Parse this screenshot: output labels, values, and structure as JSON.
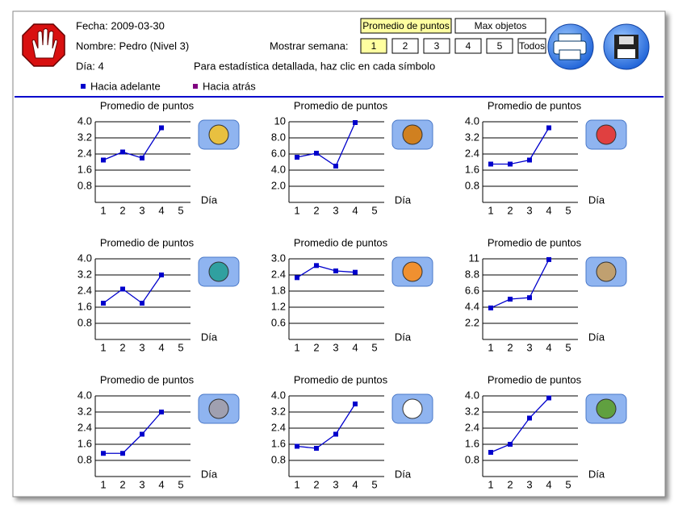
{
  "header": {
    "date": "Fecha: 2009-03-30",
    "name": "Nombre: Pedro (Nivel 3)",
    "day": "Día: 4",
    "week_label": "Mostrar semana:",
    "hint": "Para estadística detallada, haz clic en cada símbolo",
    "modes": [
      "Promedio de puntos",
      "Max objetos"
    ],
    "weeks": [
      "1",
      "2",
      "3",
      "4",
      "5",
      "Todos"
    ],
    "legend": [
      {
        "name": "Hacia adelante",
        "color": "#0000cc"
      },
      {
        "name": "Hacia atrás",
        "color": "#800080"
      }
    ]
  },
  "chart_data": [
    {
      "type": "line",
      "title": "Promedio de puntos",
      "x_label": "Día",
      "color": "#0000cc",
      "categories": [
        "1",
        "2",
        "3",
        "4",
        "5"
      ],
      "values": [
        2.1,
        2.5,
        2.2,
        3.7,
        null
      ],
      "ylim": [
        0,
        4
      ],
      "yticks": [
        0.8,
        1.6,
        2.4,
        3.2,
        {
          "value": 4,
          "label": "4.0"
        }
      ],
      "grid": true
    },
    {
      "type": "line",
      "title": "Promedio de puntos",
      "x_label": "Día",
      "color": "#0000cc",
      "categories": [
        "1",
        "2",
        "3",
        "4",
        "5"
      ],
      "values": [
        5.6,
        6.1,
        4.5,
        9.9,
        null
      ],
      "ylim": [
        0,
        10
      ],
      "yticks": [
        {
          "value": 2,
          "label": "2.0"
        },
        {
          "value": 4,
          "label": "4.0"
        },
        {
          "value": 6,
          "label": "6.0"
        },
        {
          "value": 8,
          "label": "8.0"
        },
        10
      ],
      "grid": true
    },
    {
      "type": "line",
      "title": "Promedio de puntos",
      "x_label": "Día",
      "color": "#0000cc",
      "categories": [
        "1",
        "2",
        "3",
        "4",
        "5"
      ],
      "values": [
        1.9,
        1.9,
        2.1,
        3.7,
        null
      ],
      "ylim": [
        0,
        4
      ],
      "yticks": [
        0.8,
        1.6,
        2.4,
        3.2,
        {
          "value": 4,
          "label": "4.0"
        }
      ],
      "grid": true
    },
    {
      "type": "line",
      "title": "Promedio de puntos",
      "x_label": "Día",
      "color": "#0000cc",
      "categories": [
        "1",
        "2",
        "3",
        "4",
        "5"
      ],
      "values": [
        1.8,
        2.5,
        1.8,
        3.2,
        null
      ],
      "ylim": [
        0,
        4
      ],
      "yticks": [
        0.8,
        1.6,
        2.4,
        3.2,
        {
          "value": 4,
          "label": "4.0"
        }
      ],
      "grid": true
    },
    {
      "type": "line",
      "title": "Promedio de puntos",
      "x_label": "Día",
      "color": "#0000cc",
      "categories": [
        "1",
        "2",
        "3",
        "4",
        "5"
      ],
      "values": [
        2.3,
        2.75,
        2.55,
        2.5,
        null
      ],
      "ylim": [
        0,
        3
      ],
      "yticks": [
        0.6,
        1.2,
        1.8,
        2.4,
        {
          "value": 3,
          "label": "3.0"
        }
      ],
      "grid": true
    },
    {
      "type": "line",
      "title": "Promedio de puntos",
      "x_label": "Día",
      "color": "#0000cc",
      "categories": [
        "1",
        "2",
        "3",
        "4",
        "5"
      ],
      "values": [
        4.3,
        5.5,
        5.7,
        10.9,
        null
      ],
      "ylim": [
        0,
        11
      ],
      "yticks": [
        2.2,
        4.4,
        6.6,
        8.8,
        11
      ],
      "grid": true
    },
    {
      "type": "line",
      "title": "Promedio de puntos",
      "x_label": "Día",
      "color": "#0000cc",
      "categories": [
        "1",
        "2",
        "3",
        "4",
        "5"
      ],
      "values": [
        1.15,
        1.15,
        2.1,
        3.2,
        null
      ],
      "ylim": [
        0,
        4
      ],
      "yticks": [
        0.8,
        1.6,
        2.4,
        3.2,
        {
          "value": 4,
          "label": "4.0"
        }
      ],
      "grid": true
    },
    {
      "type": "line",
      "title": "Promedio de puntos",
      "x_label": "Día",
      "color": "#0000cc",
      "categories": [
        "1",
        "2",
        "3",
        "4",
        "5"
      ],
      "values": [
        1.5,
        1.4,
        2.1,
        3.6,
        null
      ],
      "ylim": [
        0,
        4
      ],
      "yticks": [
        0.8,
        1.6,
        2.4,
        3.2,
        {
          "value": 4,
          "label": "4.0"
        }
      ],
      "grid": true
    },
    {
      "type": "line",
      "title": "Promedio de puntos",
      "x_label": "Día",
      "color": "#0000cc",
      "categories": [
        "1",
        "2",
        "3",
        "4",
        "5"
      ],
      "values": [
        1.2,
        1.6,
        2.9,
        3.9,
        null
      ],
      "ylim": [
        0,
        4
      ],
      "yticks": [
        0.8,
        1.6,
        2.4,
        3.2,
        {
          "value": 4,
          "label": "4.0"
        }
      ],
      "grid": true
    }
  ]
}
